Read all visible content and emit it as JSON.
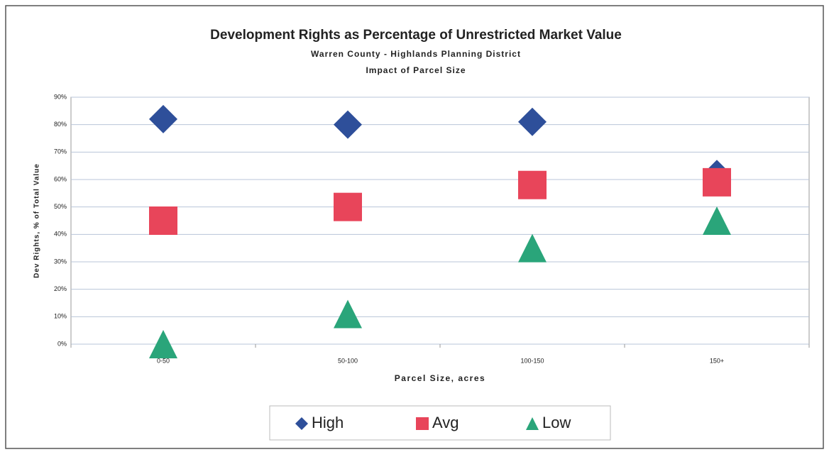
{
  "chart_data": {
    "type": "scatter",
    "title": "Development Rights as Percentage of Unrestricted Market Value",
    "subtitle": "Warren County - Highlands Planning District",
    "subtitle2": "Impact of Parcel Size",
    "x_label": "Parcel Size, acres",
    "y_label": "Dev Rights, % of Total Value",
    "categories": [
      "0-50",
      "50-100",
      "100-150",
      "150+"
    ],
    "series": [
      {
        "name": "High",
        "color": "#2e4f9a",
        "marker": "diamond",
        "values": [
          82,
          80,
          81,
          62
        ]
      },
      {
        "name": "Avg",
        "color": "#e8455a",
        "marker": "square",
        "values": [
          45,
          50,
          58,
          59
        ]
      },
      {
        "name": "Low",
        "color": "#2aa57a",
        "marker": "triangle",
        "values": [
          0,
          11,
          35,
          45
        ]
      }
    ],
    "ylim": [
      0,
      90
    ],
    "yticks": [
      {
        "value": 0,
        "label": "0%"
      },
      {
        "value": 10,
        "label": "10%"
      },
      {
        "value": 20,
        "label": "20%"
      },
      {
        "value": 30,
        "label": "30%"
      },
      {
        "value": 40,
        "label": "40%"
      },
      {
        "value": 50,
        "label": "50%"
      },
      {
        "value": 60,
        "label": "60%"
      },
      {
        "value": 70,
        "label": "70%"
      },
      {
        "value": 80,
        "label": "80%"
      },
      {
        "value": 90,
        "label": "90%"
      }
    ],
    "grid": true,
    "legend": "bottom"
  }
}
